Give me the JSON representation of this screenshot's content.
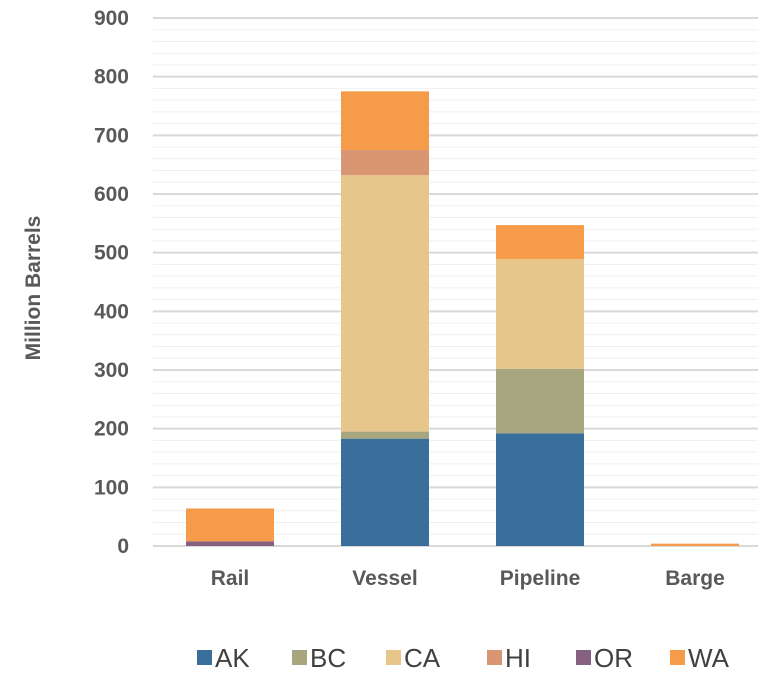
{
  "chart_data": {
    "type": "bar",
    "stacked": true,
    "ylabel": "Million Barrels",
    "xlabel": "",
    "ylim": [
      0,
      900
    ],
    "yticks": [
      0,
      100,
      200,
      300,
      400,
      500,
      600,
      700,
      800,
      900
    ],
    "grid": true,
    "legend_position": "bottom",
    "categories": [
      "Rail",
      "Vessel",
      "Pipeline",
      "Barge"
    ],
    "series": [
      {
        "name": "AK",
        "color": "#3A6F9C",
        "values": [
          0,
          183,
          192,
          0
        ]
      },
      {
        "name": "BC",
        "color": "#A8A67E",
        "values": [
          0,
          12,
          110,
          0
        ]
      },
      {
        "name": "CA",
        "color": "#E6C68B",
        "values": [
          0,
          437,
          187,
          0
        ]
      },
      {
        "name": "HI",
        "color": "#D99673",
        "values": [
          0,
          43,
          0,
          0
        ]
      },
      {
        "name": "OR",
        "color": "#86607F",
        "values": [
          8,
          0,
          0,
          0
        ]
      },
      {
        "name": "WA",
        "color": "#F59B4A",
        "values": [
          56,
          100,
          58,
          4
        ]
      }
    ]
  }
}
